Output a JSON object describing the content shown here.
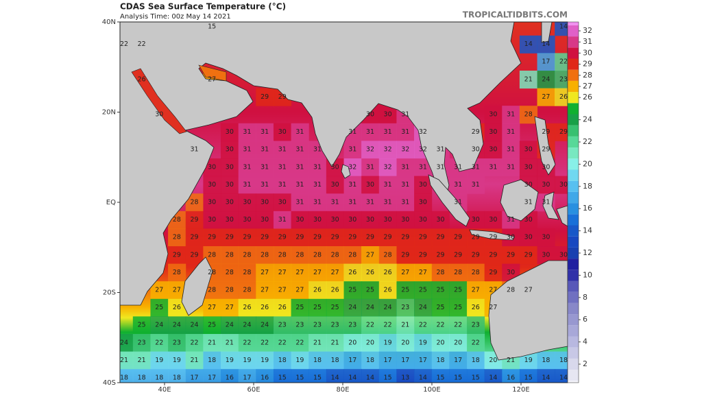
{
  "header": {
    "title": "CDAS Sea Surface Temperature (°C)",
    "subtitle": "Analysis Time: 00z May 14 2021",
    "source": "TROPICALTIDBITS.COM"
  },
  "axes": {
    "lat_labels": [
      "40N",
      "20N",
      "EQ",
      "20S",
      "40S"
    ],
    "lon_labels": [
      "40E",
      "60E",
      "80E",
      "100E",
      "120E"
    ]
  },
  "colorbar": {
    "ticks": [
      32,
      31,
      30,
      29,
      28,
      27,
      26,
      24,
      22,
      20,
      18,
      16,
      14,
      12,
      10,
      8,
      6,
      4,
      2
    ]
  },
  "grid": {
    "rows": [
      [
        null,
        null,
        null,
        null,
        null,
        15,
        null,
        null,
        null,
        null,
        null,
        null,
        null,
        null,
        null,
        null,
        null,
        null,
        null,
        null,
        null,
        null,
        null,
        null,
        null,
        14
      ],
      [
        22,
        22,
        null,
        null,
        null,
        null,
        null,
        null,
        null,
        null,
        null,
        null,
        null,
        null,
        null,
        null,
        null,
        null,
        null,
        null,
        null,
        null,
        null,
        14,
        14,
        null
      ],
      [
        null,
        null,
        null,
        null,
        null,
        null,
        null,
        null,
        null,
        null,
        null,
        null,
        null,
        null,
        null,
        null,
        null,
        null,
        null,
        null,
        null,
        null,
        null,
        null,
        17,
        22
      ],
      [
        null,
        26,
        null,
        null,
        null,
        27,
        null,
        null,
        null,
        null,
        null,
        null,
        null,
        null,
        null,
        null,
        null,
        null,
        null,
        null,
        null,
        null,
        null,
        21,
        24,
        23
      ],
      [
        null,
        null,
        null,
        null,
        null,
        null,
        null,
        null,
        29,
        29,
        null,
        null,
        null,
        null,
        null,
        null,
        null,
        null,
        null,
        null,
        null,
        null,
        null,
        null,
        27,
        26
      ],
      [
        null,
        null,
        30,
        null,
        null,
        null,
        null,
        null,
        null,
        null,
        null,
        null,
        null,
        null,
        30,
        30,
        31,
        null,
        null,
        null,
        null,
        30,
        31,
        28,
        null,
        null
      ],
      [
        null,
        null,
        null,
        null,
        null,
        null,
        30,
        31,
        31,
        30,
        31,
        null,
        null,
        31,
        31,
        31,
        31,
        32,
        null,
        null,
        29,
        30,
        31,
        null,
        29,
        29
      ],
      [
        null,
        null,
        null,
        null,
        31,
        null,
        30,
        31,
        31,
        31,
        31,
        31,
        null,
        31,
        32,
        32,
        32,
        32,
        31,
        null,
        30,
        30,
        31,
        30,
        29,
        null
      ],
      [
        null,
        null,
        null,
        null,
        null,
        30,
        30,
        31,
        31,
        31,
        31,
        31,
        30,
        32,
        31,
        32,
        31,
        31,
        31,
        31,
        31,
        31,
        31,
        30,
        30,
        null
      ],
      [
        null,
        null,
        null,
        null,
        null,
        30,
        30,
        31,
        31,
        31,
        31,
        31,
        30,
        31,
        30,
        31,
        31,
        30,
        null,
        31,
        31,
        null,
        null,
        30,
        30,
        30
      ],
      [
        null,
        null,
        null,
        null,
        28,
        30,
        30,
        30,
        30,
        30,
        31,
        31,
        31,
        31,
        31,
        31,
        31,
        30,
        null,
        31,
        null,
        null,
        null,
        31,
        31,
        null
      ],
      [
        null,
        null,
        null,
        28,
        29,
        30,
        30,
        30,
        30,
        31,
        30,
        30,
        30,
        30,
        30,
        30,
        30,
        30,
        30,
        null,
        30,
        30,
        31,
        30,
        null,
        null
      ],
      [
        null,
        null,
        null,
        28,
        29,
        29,
        29,
        29,
        29,
        29,
        29,
        29,
        29,
        29,
        29,
        29,
        29,
        29,
        29,
        29,
        29,
        29,
        30,
        30,
        30,
        null
      ],
      [
        null,
        null,
        null,
        29,
        29,
        28,
        28,
        28,
        28,
        28,
        28,
        28,
        28,
        28,
        27,
        28,
        29,
        29,
        29,
        29,
        29,
        29,
        29,
        29,
        30,
        30
      ],
      [
        null,
        null,
        null,
        28,
        null,
        28,
        28,
        28,
        27,
        27,
        27,
        27,
        27,
        26,
        26,
        26,
        27,
        27,
        28,
        28,
        28,
        29,
        30,
        null,
        null,
        null
      ],
      [
        null,
        null,
        27,
        27,
        null,
        28,
        28,
        28,
        27,
        27,
        27,
        26,
        26,
        25,
        25,
        26,
        25,
        25,
        25,
        25,
        27,
        27,
        28,
        27,
        null,
        null
      ],
      [
        null,
        null,
        25,
        26,
        null,
        27,
        27,
        26,
        26,
        26,
        25,
        25,
        25,
        24,
        24,
        24,
        23,
        24,
        25,
        25,
        26,
        27,
        null,
        null,
        null,
        null
      ],
      [
        null,
        25,
        24,
        24,
        24,
        25,
        24,
        24,
        24,
        23,
        23,
        23,
        23,
        23,
        22,
        22,
        21,
        22,
        22,
        22,
        23,
        null,
        null,
        null,
        null,
        null
      ],
      [
        24,
        23,
        22,
        23,
        22,
        21,
        21,
        22,
        22,
        22,
        22,
        21,
        21,
        20,
        20,
        19,
        20,
        19,
        20,
        20,
        22,
        null,
        null,
        null,
        null,
        null
      ],
      [
        21,
        21,
        19,
        19,
        21,
        18,
        19,
        19,
        19,
        18,
        19,
        18,
        18,
        17,
        18,
        17,
        17,
        17,
        18,
        17,
        18,
        20,
        21,
        19,
        18,
        18
      ],
      [
        18,
        18,
        18,
        18,
        17,
        17,
        16,
        17,
        16,
        15,
        15,
        15,
        14,
        14,
        14,
        15,
        13,
        14,
        15,
        15,
        15,
        14,
        16,
        15,
        14,
        14
      ]
    ]
  }
}
